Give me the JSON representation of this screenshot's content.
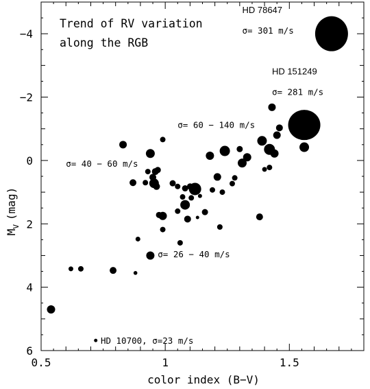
{
  "chart_data": {
    "type": "scatter",
    "title": "Trend of RV variation along the RGB",
    "title_lines": [
      "Trend of RV variation",
      "along the RGB"
    ],
    "xlabel": "color index (B−V)",
    "ylabel_main": "M",
    "ylabel_sub": "V",
    "ylabel_unit": "(mag)",
    "xlim": [
      0.5,
      1.8
    ],
    "ylim": [
      6,
      -5
    ],
    "y_inverted": true,
    "grid": false,
    "x_ticks": [
      {
        "value": 0.5,
        "label": "0.5"
      },
      {
        "value": 1.0,
        "label": "1"
      },
      {
        "value": 1.5,
        "label": "1.5"
      }
    ],
    "y_ticks": [
      {
        "value": -4,
        "label": "−4"
      },
      {
        "value": -2,
        "label": "−2"
      },
      {
        "value": 0,
        "label": "0"
      },
      {
        "value": 2,
        "label": "2"
      },
      {
        "value": 4,
        "label": "4"
      },
      {
        "value": 6,
        "label": "6"
      }
    ],
    "annotations": [
      {
        "id": "hd78647-name",
        "text": "HD 78647",
        "x": 1.31,
        "y": -4.65,
        "font": "sans"
      },
      {
        "id": "hd78647-sigma",
        "text": "σ= 301 m/s",
        "x": 1.31,
        "y": -4.0,
        "font": "mono"
      },
      {
        "id": "hd151249-name",
        "text": "HD 151249",
        "x": 1.43,
        "y": -2.72,
        "font": "sans"
      },
      {
        "id": "hd151249-sigma",
        "text": "σ= 281 m/s",
        "x": 1.43,
        "y": -2.07,
        "font": "mono"
      },
      {
        "id": "sigma-60-140",
        "text": "σ= 60 − 140 m/s",
        "x": 1.05,
        "y": -1.03,
        "font": "mono"
      },
      {
        "id": "sigma-40-60",
        "text": "σ= 40 − 60 m/s",
        "x": 0.6,
        "y": 0.2,
        "font": "mono"
      },
      {
        "id": "sigma-26-40",
        "text": "σ= 26 − 40 m/s",
        "x": 0.97,
        "y": 3.05,
        "font": "mono"
      },
      {
        "id": "hd10700",
        "text": "HD 10700, σ=23 m/s",
        "x": 0.74,
        "y": 5.78,
        "font": "mono"
      }
    ],
    "points": [
      {
        "x": 0.54,
        "y": 4.7,
        "r": 6
      },
      {
        "x": 0.62,
        "y": 3.42,
        "r": 3.5
      },
      {
        "x": 0.66,
        "y": 3.42,
        "r": 4
      },
      {
        "x": 0.72,
        "y": 5.68,
        "r": 2.5
      },
      {
        "x": 0.79,
        "y": 3.47,
        "r": 5
      },
      {
        "x": 0.83,
        "y": -0.5,
        "r": 5.5
      },
      {
        "x": 0.87,
        "y": 0.7,
        "r": 5
      },
      {
        "x": 0.88,
        "y": 3.55,
        "r": 2.8
      },
      {
        "x": 0.89,
        "y": 2.48,
        "r": 3.5
      },
      {
        "x": 0.92,
        "y": 0.7,
        "r": 4
      },
      {
        "x": 0.93,
        "y": 0.35,
        "r": 4
      },
      {
        "x": 0.94,
        "y": -0.22,
        "r": 6.5
      },
      {
        "x": 0.94,
        "y": 3.0,
        "r": 6
      },
      {
        "x": 0.95,
        "y": 0.53,
        "r": 5
      },
      {
        "x": 0.955,
        "y": 0.72,
        "r": 7
      },
      {
        "x": 0.96,
        "y": 0.35,
        "r": 5
      },
      {
        "x": 0.965,
        "y": 0.82,
        "r": 5
      },
      {
        "x": 0.97,
        "y": 0.3,
        "r": 4.5
      },
      {
        "x": 0.975,
        "y": 1.72,
        "r": 4.5
      },
      {
        "x": 0.99,
        "y": -0.66,
        "r": 4
      },
      {
        "x": 0.99,
        "y": 1.75,
        "r": 6
      },
      {
        "x": 0.99,
        "y": 2.18,
        "r": 4
      },
      {
        "x": 1.03,
        "y": 0.72,
        "r": 4.5
      },
      {
        "x": 1.05,
        "y": 0.82,
        "r": 4
      },
      {
        "x": 1.05,
        "y": 1.6,
        "r": 4
      },
      {
        "x": 1.06,
        "y": 2.6,
        "r": 4
      },
      {
        "x": 1.07,
        "y": 1.15,
        "r": 4
      },
      {
        "x": 1.08,
        "y": 0.88,
        "r": 4.5
      },
      {
        "x": 1.08,
        "y": 1.4,
        "r": 7
      },
      {
        "x": 1.09,
        "y": 1.85,
        "r": 5
      },
      {
        "x": 1.1,
        "y": 0.82,
        "r": 4.5
      },
      {
        "x": 1.105,
        "y": 1.18,
        "r": 4
      },
      {
        "x": 1.12,
        "y": 0.9,
        "r": 9
      },
      {
        "x": 1.13,
        "y": 1.8,
        "r": 2.5
      },
      {
        "x": 1.14,
        "y": 1.12,
        "r": 3
      },
      {
        "x": 1.16,
        "y": 1.63,
        "r": 4.5
      },
      {
        "x": 1.18,
        "y": -0.15,
        "r": 6
      },
      {
        "x": 1.19,
        "y": 0.93,
        "r": 4
      },
      {
        "x": 1.21,
        "y": 0.52,
        "r": 5.5
      },
      {
        "x": 1.22,
        "y": 2.1,
        "r": 4
      },
      {
        "x": 1.23,
        "y": 1.0,
        "r": 4
      },
      {
        "x": 1.24,
        "y": -0.3,
        "r": 7.5
      },
      {
        "x": 1.27,
        "y": 0.73,
        "r": 4
      },
      {
        "x": 1.28,
        "y": 0.55,
        "r": 4
      },
      {
        "x": 1.3,
        "y": -0.36,
        "r": 4.5
      },
      {
        "x": 1.31,
        "y": 0.08,
        "r": 6.5
      },
      {
        "x": 1.33,
        "y": -0.1,
        "r": 6
      },
      {
        "x": 1.38,
        "y": 1.78,
        "r": 5
      },
      {
        "x": 1.39,
        "y": -0.62,
        "r": 7
      },
      {
        "x": 1.4,
        "y": 0.28,
        "r": 3.5
      },
      {
        "x": 1.42,
        "y": -0.35,
        "r": 8
      },
      {
        "x": 1.42,
        "y": 0.22,
        "r": 4
      },
      {
        "x": 1.43,
        "y": -1.68,
        "r": 5.5
      },
      {
        "x": 1.44,
        "y": -0.22,
        "r": 6
      },
      {
        "x": 1.45,
        "y": -0.8,
        "r": 5.5
      },
      {
        "x": 1.46,
        "y": -1.03,
        "r": 5
      },
      {
        "x": 1.56,
        "y": -1.12,
        "rx": 23.5,
        "ry": 22
      },
      {
        "x": 1.56,
        "y": -0.42,
        "r": 7
      },
      {
        "x": 1.67,
        "y": -4.0,
        "rx": 24,
        "ry": 25.5
      }
    ]
  }
}
